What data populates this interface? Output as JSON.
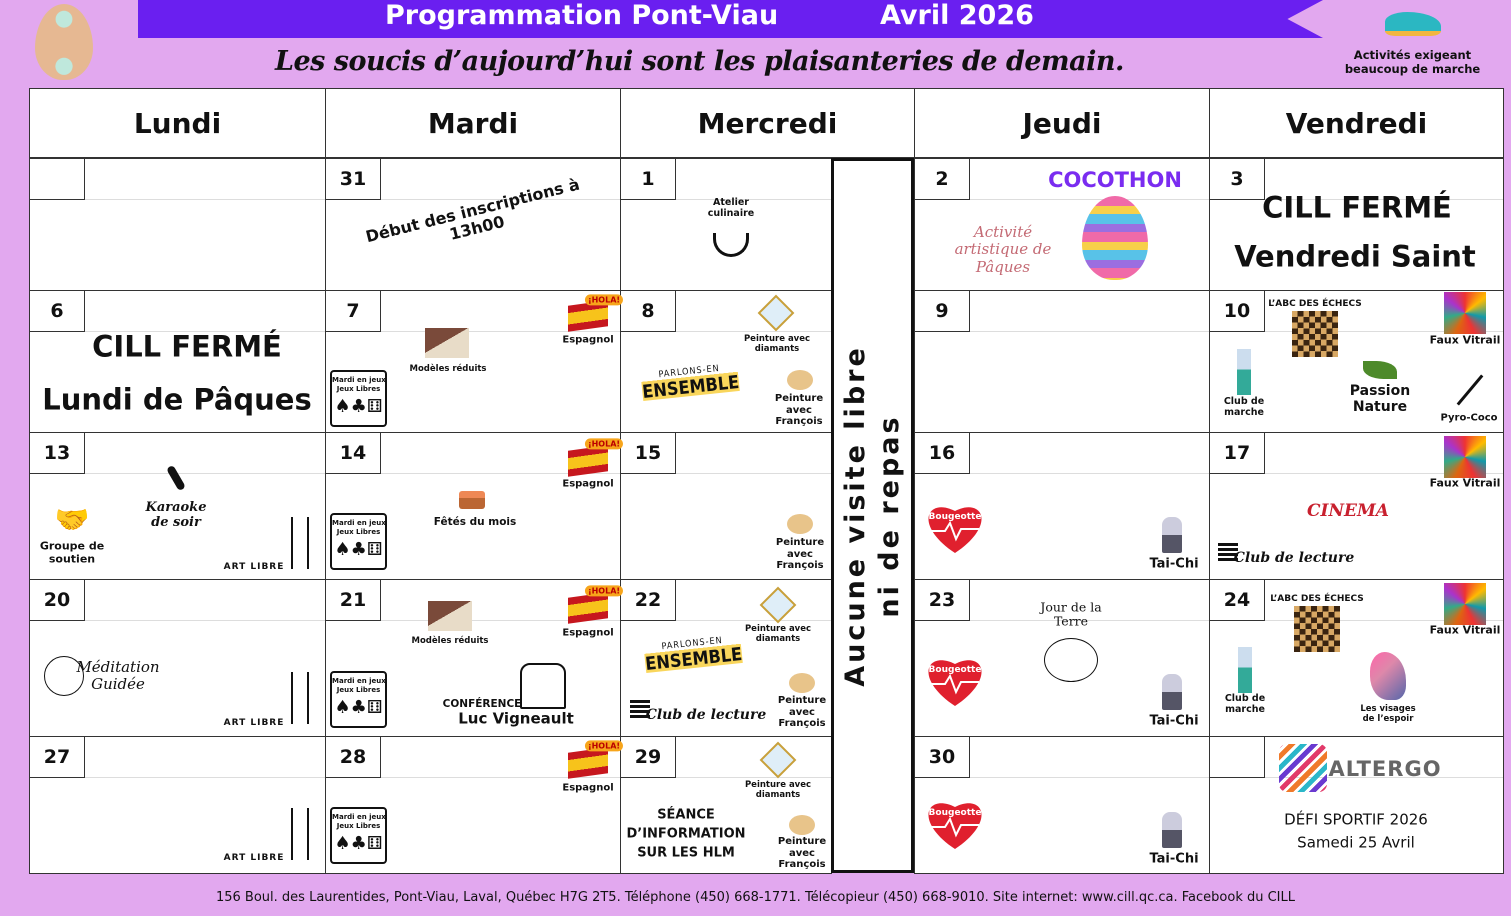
{
  "header": {
    "title": "Programmation Pont-Viau",
    "month": "Avril 2026",
    "motto": "Les soucis d’aujourd’hui sont les plaisanteries de demain.",
    "legend": "Activités exigeant beaucoup de marche",
    "accent": "#6a1ff0",
    "background": "#e2a8ef"
  },
  "days": [
    "Lundi",
    "Mardi",
    "Mercredi",
    "Jeudi",
    "Vendredi"
  ],
  "weeks": [
    [
      "",
      "31",
      "1",
      "2",
      "3"
    ],
    [
      "6",
      "7",
      "8",
      "9",
      "10"
    ],
    [
      "13",
      "14",
      "15",
      "16",
      "17"
    ],
    [
      "20",
      "21",
      "22",
      "23",
      "24"
    ],
    [
      "27",
      "28",
      "29",
      "30",
      ""
    ]
  ],
  "banner": {
    "line1": "Aucune visite libre",
    "line2": "ni de repas"
  },
  "labels": {
    "inscriptions": "Début des inscriptions à 13h00",
    "atelier": "Atelier culinaire",
    "cocothon": "COCOTHON",
    "paques_art": "Activité artistique de Pâques",
    "ferme": "CILL FERMÉ",
    "vendredi_saint": "Vendredi Saint",
    "lundi_paques": "Lundi de Pâques",
    "modeles": "Modèles réduits",
    "espagnol": "Espagnol",
    "hola": "¡HOLA!",
    "jeux1": "Mardi en jeux",
    "jeux2": "Jeux Libres",
    "diamants": "Peinture avec diamants",
    "parlons": "PARLONS-EN",
    "ensemble": "ENSEMBLE",
    "francois": "Peinture avec François",
    "echecs": "L’ABC DES ÉCHECS",
    "vitrail": "Faux Vitrail",
    "marche": "Club de marche",
    "passion": "Passion Nature",
    "pyro": "Pyro-Coco",
    "soutien": "Groupe de soutien",
    "karaoke": "Karaoke de soir",
    "art_libre": "ART LIBRE",
    "fetes": "Fêtés du mois",
    "bougeotte": "Bougeotte",
    "taichi": "Tai-Chi",
    "cinema": "CINEMA",
    "lecture": "Club de lecture",
    "meditation": "Méditation Guidée",
    "conference": "CONFÉRENCE",
    "vigneault": "Luc Vigneault",
    "terre": "Jour de la Terre",
    "visages": "Les visages de l’espoir",
    "hlm": "SÉANCE D’INFORMATION SUR LES HLM",
    "altergo": "ALTERGO",
    "defi": "DÉFI SPORTIF 2026",
    "samedi": "Samedi 25 Avril"
  },
  "footer": "156 Boul. des Laurentides, Pont-Viau, Laval, Québec H7G 2T5.    Téléphone  (450) 668-1771. Télécopieur (450) 668-9010. Site internet: www.cill.qc.ca. Facebook du CILL"
}
